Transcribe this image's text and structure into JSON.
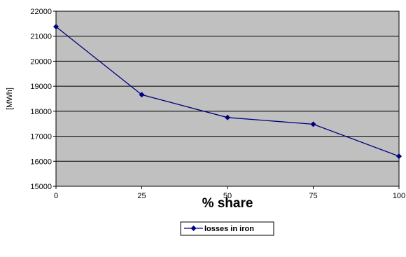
{
  "chart_data": {
    "type": "line",
    "xlabel": "% share",
    "ylabel": "[MWh]",
    "x": [
      0,
      25,
      50,
      75,
      100
    ],
    "xlim": [
      0,
      100
    ],
    "xticks": [
      0,
      25,
      50,
      75,
      100
    ],
    "ylim": [
      15000,
      22000
    ],
    "yticks": [
      15000,
      16000,
      17000,
      18000,
      19000,
      20000,
      21000,
      22000
    ],
    "grid": "horizontal",
    "legend": "bottom",
    "plot_background": "#c0c0c0",
    "series": [
      {
        "name": "losses in iron",
        "color": "#000080",
        "marker": "diamond",
        "values": [
          21380,
          18660,
          17750,
          17480,
          16200
        ]
      }
    ]
  }
}
